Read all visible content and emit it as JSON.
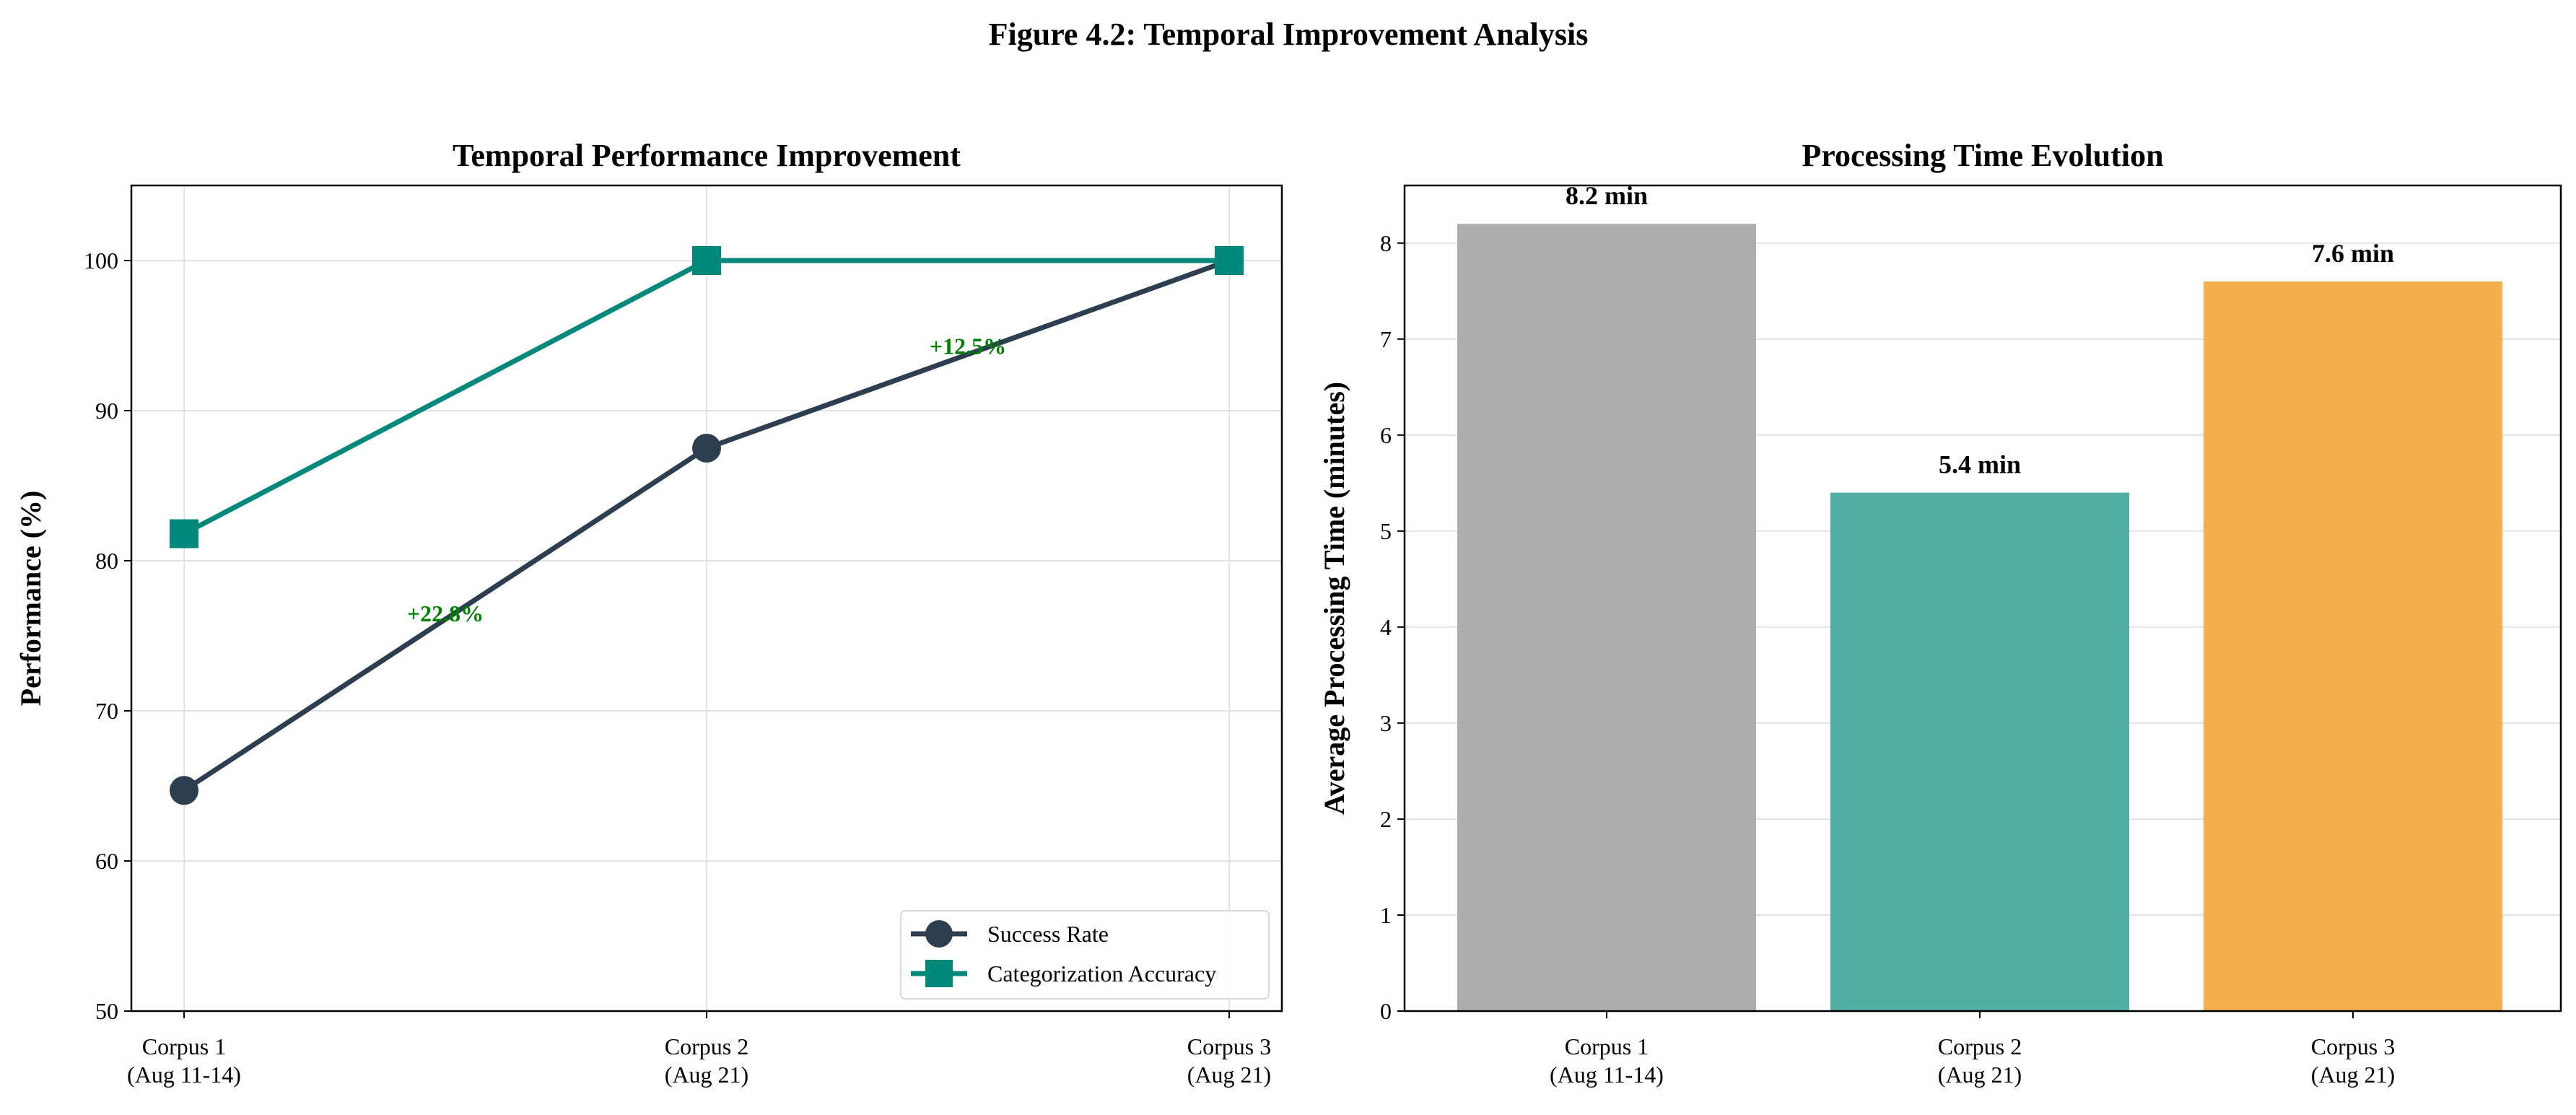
{
  "figure": {
    "title": "Figure 4.2: Temporal Improvement Analysis"
  },
  "chart_data": [
    {
      "type": "line",
      "title": "Temporal Performance Improvement",
      "xlabel": "",
      "ylabel": "Performance (%)",
      "categories": [
        [
          "Corpus 1",
          "(Aug 11-14)"
        ],
        [
          "Corpus 2",
          "(Aug 21)"
        ],
        [
          "Corpus 3",
          "(Aug 21)"
        ]
      ],
      "ylim": [
        50,
        105
      ],
      "yticks": [
        50,
        60,
        70,
        80,
        90,
        100
      ],
      "grid": true,
      "legend_position": "lower-right",
      "series": [
        {
          "name": "Success Rate",
          "values": [
            64.7,
            87.5,
            100
          ],
          "color": "#2c3e50",
          "marker": "circle"
        },
        {
          "name": "Categorization Accuracy",
          "values": [
            81.8,
            100,
            100
          ],
          "color": "#00897b",
          "marker": "square"
        }
      ],
      "annotations": [
        {
          "text": "+22.8%",
          "x": 0.5,
          "y": 76.5,
          "color": "#008000"
        },
        {
          "text": "+12.5%",
          "x": 1.5,
          "y": 94.3,
          "color": "#008000"
        }
      ]
    },
    {
      "type": "bar",
      "title": "Processing Time Evolution",
      "xlabel": "",
      "ylabel": "Average Processing Time (minutes)",
      "categories": [
        [
          "Corpus 1",
          "(Aug 11-14)"
        ],
        [
          "Corpus 2",
          "(Aug 21)"
        ],
        [
          "Corpus 3",
          "(Aug 21)"
        ]
      ],
      "values": [
        8.2,
        5.4,
        7.6
      ],
      "value_labels": [
        "8.2 min",
        "5.4 min",
        "7.6 min"
      ],
      "colors": [
        "#adadad",
        "#52ada3",
        "#f4af4f"
      ],
      "ylim": [
        0,
        8.6
      ],
      "yticks": [
        0,
        1,
        2,
        3,
        4,
        5,
        6,
        7,
        8
      ],
      "grid": true
    }
  ]
}
